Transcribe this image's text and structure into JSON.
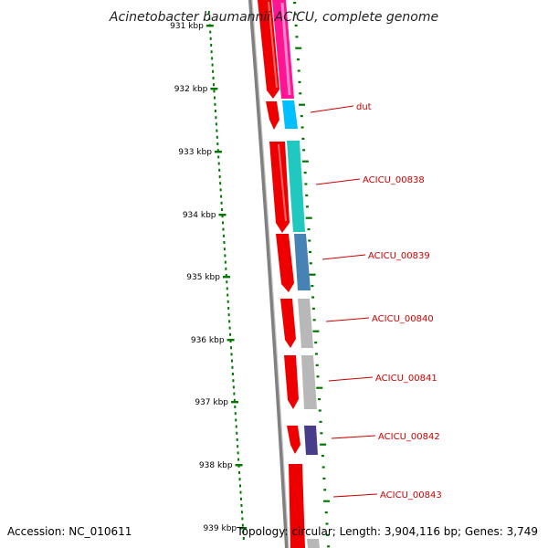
{
  "title": "Acinetobacter baumannii ACICU, complete genome",
  "ticks": [
    {
      "label": "931 kbp"
    },
    {
      "label": "932 kbp"
    },
    {
      "label": "933 kbp"
    },
    {
      "label": "934 kbp"
    },
    {
      "label": "935 kbp"
    },
    {
      "label": "936 kbp"
    },
    {
      "label": "937 kbp"
    },
    {
      "label": "938 kbp"
    },
    {
      "label": "939 kbp"
    }
  ],
  "genes": [
    {
      "label": "dut",
      "color": "#00bfff"
    },
    {
      "label": "ACICU_00838",
      "color": "#20c8c0"
    },
    {
      "label": "ACICU_00839",
      "color": "#4682b4"
    },
    {
      "label": "ACICU_00840",
      "color": "#b8b8b8"
    },
    {
      "label": "ACICU_00841",
      "color": "#b8b8b8"
    },
    {
      "label": "ACICU_00842",
      "color": "#483d8b"
    },
    {
      "label": "ACICU_00843",
      "color": "#b8b8b8"
    }
  ],
  "colors": {
    "cds_strand": "#ee0000",
    "top_feature": "#ff1493",
    "backbone": "#808080",
    "tick": "#007700",
    "label_line": "#cc0000"
  },
  "footer": {
    "accession": "Accession: NC_010611",
    "summary": "Topology: circular; Length: 3,904,116 bp; Genes: 3,749"
  }
}
